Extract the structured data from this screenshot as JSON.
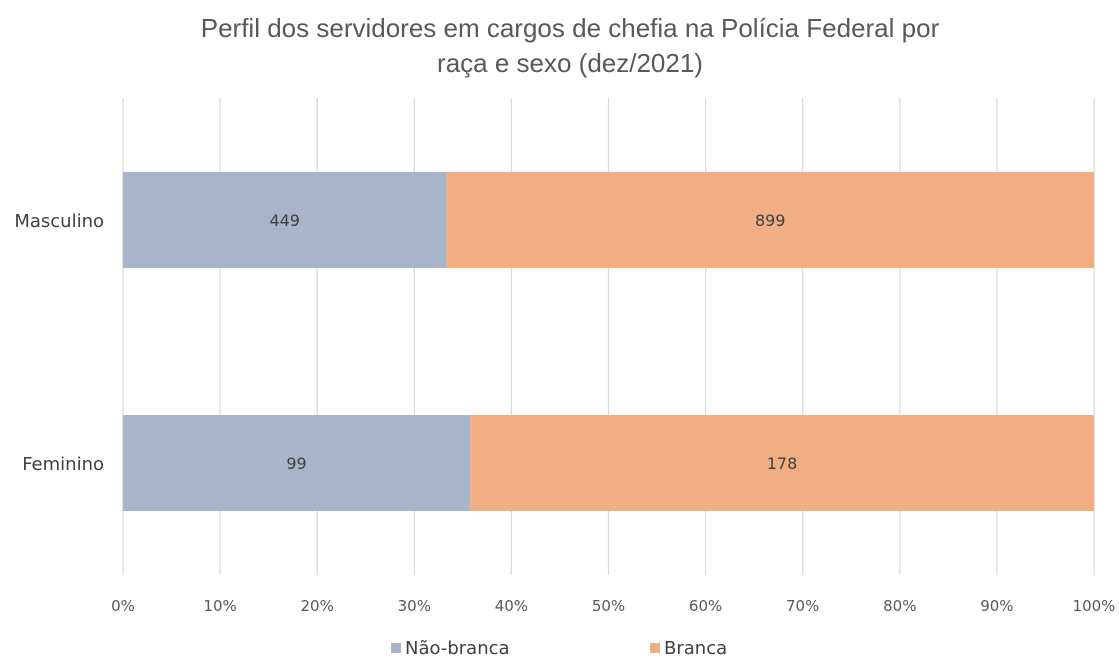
{
  "chart_data": {
    "type": "bar",
    "orientation": "horizontal",
    "stacked": "percent",
    "title_lines": [
      "Perfil dos servidores em cargos de chefia na Polícia Federal por",
      "raça e sexo (dez/2021)"
    ],
    "categories": [
      "Masculino",
      "Feminino"
    ],
    "series": [
      {
        "name": "Não-branca",
        "values": [
          449,
          99
        ],
        "color": "#a8b4c8"
      },
      {
        "name": "Branca",
        "values": [
          899,
          178
        ],
        "color": "#f1ae84"
      }
    ],
    "xlim": [
      0,
      100
    ],
    "x_ticks": [
      "0%",
      "10%",
      "20%",
      "30%",
      "40%",
      "50%",
      "60%",
      "70%",
      "80%",
      "90%",
      "100%"
    ],
    "grid": true,
    "legend_position": "bottom"
  }
}
